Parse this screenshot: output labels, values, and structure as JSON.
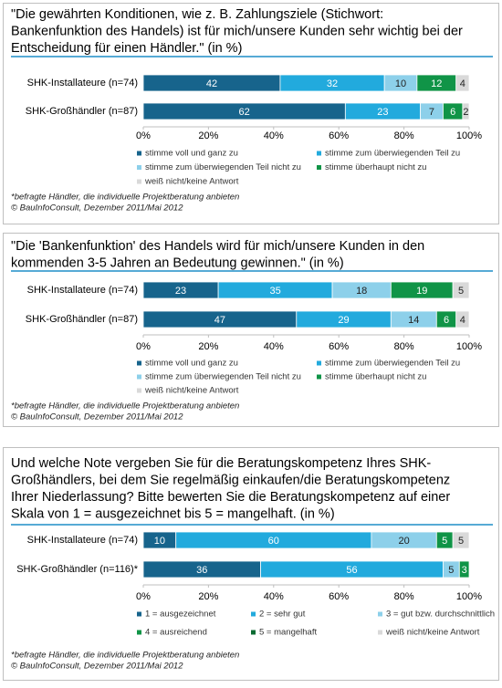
{
  "chart_data": [
    {
      "type": "stacked-bar-horizontal",
      "title": [
        "\"Die gewährten Konditionen, wie z. B. Zahlungsziele (Stichwort:",
        "Bankenfunktion des Handels) ist für mich/unsere Kunden  sehr wichtig bei der",
        "Entscheidung für einen Händler.\" (in %)"
      ],
      "categories": [
        "SHK-Installateure (n=74)",
        "SHK-Großhändler (n=87)"
      ],
      "series": [
        {
          "name": "stimme voll und ganz zu",
          "color": "#17648c",
          "values": [
            42,
            62
          ]
        },
        {
          "name": "stimme zum überwiegenden Teil zu",
          "color": "#22aadd",
          "values": [
            32,
            23
          ]
        },
        {
          "name": "stimme zum überwiegenden Teil nicht zu",
          "color": "#8dd0ea",
          "values": [
            10,
            7
          ]
        },
        {
          "name": "stimme überhaupt nicht zu",
          "color": "#109447",
          "values": [
            12,
            6
          ]
        },
        {
          "name": "weiß nicht/keine Antwort",
          "color": "#d9d9d9",
          "values": [
            4,
            2
          ]
        }
      ],
      "xlim": [
        0,
        100
      ],
      "xticks": [
        {
          "value": 0,
          "label": "0%"
        },
        {
          "value": 20,
          "label": "20%"
        },
        {
          "value": 40,
          "label": "40%"
        },
        {
          "value": 60,
          "label": "60%"
        },
        {
          "value": 80,
          "label": "80%"
        },
        {
          "value": 100,
          "label": "100%"
        }
      ],
      "notes": [
        "*befragte Händler, die individuelle Projektberatung anbieten",
        "© BauInfoConsult,  Dezember  2011/Mai 2012"
      ]
    },
    {
      "type": "stacked-bar-horizontal",
      "title": [
        "\"Die 'Bankenfunktion' des Handels wird für mich/unsere Kunden in den",
        "kommenden 3-5 Jahren an Bedeutung gewinnen.\" (in %)"
      ],
      "categories": [
        "SHK-Installateure (n=74)",
        "SHK-Großhändler (n=87)"
      ],
      "series": [
        {
          "name": "stimme voll und ganz zu",
          "color": "#17648c",
          "values": [
            23,
            47
          ]
        },
        {
          "name": "stimme zum überwiegenden Teil zu",
          "color": "#22aadd",
          "values": [
            35,
            29
          ]
        },
        {
          "name": "stimme zum überwiegenden Teil nicht zu",
          "color": "#8dd0ea",
          "values": [
            18,
            14
          ]
        },
        {
          "name": "stimme überhaupt nicht zu",
          "color": "#109447",
          "values": [
            19,
            6
          ]
        },
        {
          "name": "weiß nicht/keine Antwort",
          "color": "#d9d9d9",
          "values": [
            5,
            4
          ]
        }
      ],
      "xlim": [
        0,
        100
      ],
      "xticks": [
        {
          "value": 0,
          "label": "0%"
        },
        {
          "value": 20,
          "label": "20%"
        },
        {
          "value": 40,
          "label": "40%"
        },
        {
          "value": 60,
          "label": "60%"
        },
        {
          "value": 80,
          "label": "80%"
        },
        {
          "value": 100,
          "label": "100%"
        }
      ],
      "notes": [
        "*befragte Händler, die individuelle Projektberatung anbieten",
        "© BauInfoConsult,  Dezember  2011/Mai 2012"
      ]
    },
    {
      "type": "stacked-bar-horizontal",
      "title": [
        "Und welche Note vergeben Sie für die Beratungskompetenz Ihres SHK-",
        "Großhändlers, bei dem Sie regelmäßig einkaufen/die Beratungskompetenz",
        "Ihrer Niederlassung? Bitte bewerten Sie die Beratungskompetenz auf einer",
        "Skala von 1 = ausgezeichnet bis 5 = mangelhaft. (in %)"
      ],
      "categories": [
        "SHK-Installateure (n=74)",
        "SHK-Großhändler (n=116)*"
      ],
      "series": [
        {
          "name": "1 = ausgezeichnet",
          "color": "#17648c",
          "values": [
            10,
            36
          ]
        },
        {
          "name": "2 = sehr gut",
          "color": "#22aadd",
          "values": [
            60,
            56
          ]
        },
        {
          "name": "3 = gut bzw. durchschnittlich",
          "color": "#8dd0ea",
          "values": [
            20,
            5
          ]
        },
        {
          "name": "4 = ausreichend",
          "color": "#109447",
          "values": [
            5,
            3
          ]
        },
        {
          "name": "5 = mangelhaft",
          "color": "#0b6b32",
          "values": [
            null,
            null
          ]
        },
        {
          "name": "weiß nicht/keine Antwort",
          "color": "#d9d9d9",
          "values": [
            5,
            null
          ]
        }
      ],
      "xlim": [
        0,
        100
      ],
      "xticks": [
        {
          "value": 0,
          "label": "0%"
        },
        {
          "value": 20,
          "label": "20%"
        },
        {
          "value": 40,
          "label": "40%"
        },
        {
          "value": 60,
          "label": "60%"
        },
        {
          "value": 80,
          "label": "80%"
        },
        {
          "value": 100,
          "label": "100%"
        }
      ],
      "notes": [
        "*befragte Händler, die individuelle Projektberatung anbieten",
        "© BauInfoConsult,  Dezember  2011/Mai 2012"
      ]
    }
  ]
}
